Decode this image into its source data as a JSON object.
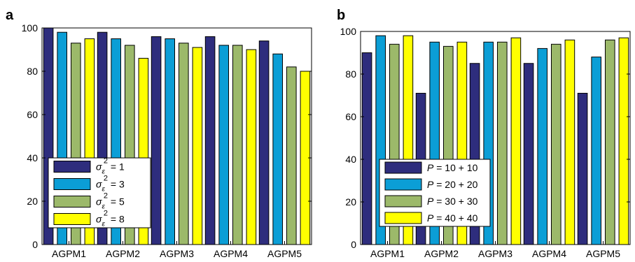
{
  "chart_data": [
    {
      "type": "bar",
      "panel_label": "a",
      "categories": [
        "AGPM1",
        "AGPM2",
        "AGPM3",
        "AGPM4",
        "AGPM5"
      ],
      "ylim": [
        0,
        100
      ],
      "yticks": [
        "0",
        "20",
        "40",
        "60",
        "80",
        "100"
      ],
      "grid": false,
      "legend_position": "bottom-left",
      "series": [
        {
          "name": "σε² = 1",
          "legend": {
            "sym": "σ",
            "sub": "ε",
            "sup": "2",
            "rest": " = 1"
          },
          "color": "#2e2d7d",
          "values": [
            100,
            98,
            96,
            96,
            94
          ]
        },
        {
          "name": "σε² = 3",
          "legend": {
            "sym": "σ",
            "sub": "ε",
            "sup": "2",
            "rest": " = 3"
          },
          "color": "#0b9ed6",
          "values": [
            98,
            95,
            95,
            92,
            88
          ]
        },
        {
          "name": "σε² = 5",
          "legend": {
            "sym": "σ",
            "sub": "ε",
            "sup": "2",
            "rest": " = 5"
          },
          "color": "#9cb96a",
          "values": [
            93,
            92,
            93,
            92,
            82
          ]
        },
        {
          "name": "σε² = 8",
          "legend": {
            "sym": "σ",
            "sub": "ε",
            "sup": "2",
            "rest": " = 8"
          },
          "color": "#ffff00",
          "values": [
            95,
            86,
            91,
            90,
            80
          ]
        }
      ]
    },
    {
      "type": "bar",
      "panel_label": "b",
      "categories": [
        "AGPM1",
        "AGPM2",
        "AGPM3",
        "AGPM4",
        "AGPM5"
      ],
      "ylim": [
        0,
        100
      ],
      "yticks": [
        "0",
        "20",
        "40",
        "60",
        "80",
        "100"
      ],
      "grid": false,
      "legend_position": "bottom-left",
      "series": [
        {
          "name": "P = 10 + 10",
          "legend": {
            "sym": "P",
            "rest": " = 10 + 10"
          },
          "color": "#2e2d7d",
          "values": [
            90,
            71,
            85,
            85,
            71
          ]
        },
        {
          "name": "P = 20 + 20",
          "legend": {
            "sym": "P",
            "rest": " = 20 + 20"
          },
          "color": "#0b9ed6",
          "values": [
            98,
            95,
            95,
            92,
            88
          ]
        },
        {
          "name": "P = 30 + 30",
          "legend": {
            "sym": "P",
            "rest": " = 30 + 30"
          },
          "color": "#9cb96a",
          "values": [
            94,
            93,
            95,
            94,
            96
          ]
        },
        {
          "name": "P = 40 + 40",
          "legend": {
            "sym": "P",
            "rest": " = 40 + 40"
          },
          "color": "#ffff00",
          "values": [
            98,
            95,
            97,
            96,
            97
          ]
        }
      ]
    }
  ]
}
